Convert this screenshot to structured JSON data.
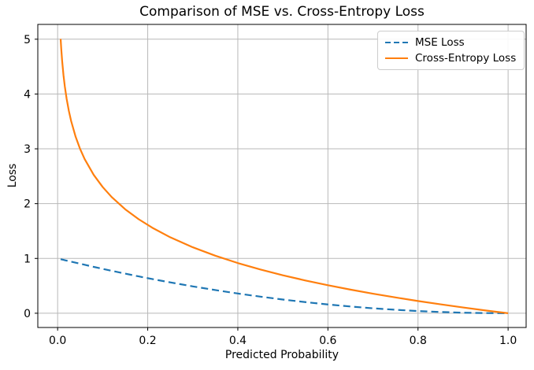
{
  "chart_data": {
    "type": "line",
    "title": "Comparison of MSE vs. Cross-Entropy Loss",
    "xlabel": "Predicted Probability",
    "ylabel": "Loss",
    "xlim": [
      -0.044,
      1.04
    ],
    "ylim": [
      -0.26,
      5.27
    ],
    "x_ticks": [
      0.0,
      0.2,
      0.4,
      0.6,
      0.8,
      1.0
    ],
    "x_tick_labels": [
      "0.0",
      "0.2",
      "0.4",
      "0.6",
      "0.8",
      "1.0"
    ],
    "y_ticks": [
      0,
      1,
      2,
      3,
      4,
      5
    ],
    "y_tick_labels": [
      "0",
      "1",
      "2",
      "3",
      "4",
      "5"
    ],
    "grid": true,
    "grid_color": "#b8b8b8",
    "spine_color": "#000000",
    "legend_position": "upper right",
    "x": [
      0.0067,
      0.008,
      0.01,
      0.013,
      0.016,
      0.02,
      0.025,
      0.03,
      0.04,
      0.05,
      0.06,
      0.08,
      0.1,
      0.12,
      0.15,
      0.18,
      0.21,
      0.25,
      0.3,
      0.35,
      0.4,
      0.45,
      0.5,
      0.55,
      0.6,
      0.65,
      0.7,
      0.75,
      0.8,
      0.85,
      0.9,
      0.95,
      1.0
    ],
    "series": [
      {
        "name": "MSE Loss",
        "color": "#1f77b4",
        "line_style": "dashed",
        "values": [
          0.987,
          0.984,
          0.98,
          0.974,
          0.968,
          0.96,
          0.951,
          0.941,
          0.922,
          0.903,
          0.884,
          0.846,
          0.81,
          0.774,
          0.723,
          0.672,
          0.624,
          0.563,
          0.49,
          0.423,
          0.36,
          0.303,
          0.25,
          0.203,
          0.16,
          0.123,
          0.09,
          0.063,
          0.04,
          0.023,
          0.01,
          0.003,
          0.0
        ]
      },
      {
        "name": "Cross-Entropy Loss",
        "color": "#ff7f0e",
        "line_style": "solid",
        "values": [
          5.006,
          4.828,
          4.605,
          4.343,
          4.135,
          3.912,
          3.689,
          3.507,
          3.219,
          2.996,
          2.813,
          2.526,
          2.303,
          2.12,
          1.897,
          1.715,
          1.561,
          1.386,
          1.204,
          1.05,
          0.916,
          0.799,
          0.693,
          0.598,
          0.511,
          0.431,
          0.357,
          0.288,
          0.223,
          0.163,
          0.105,
          0.051,
          0.0
        ]
      }
    ]
  }
}
